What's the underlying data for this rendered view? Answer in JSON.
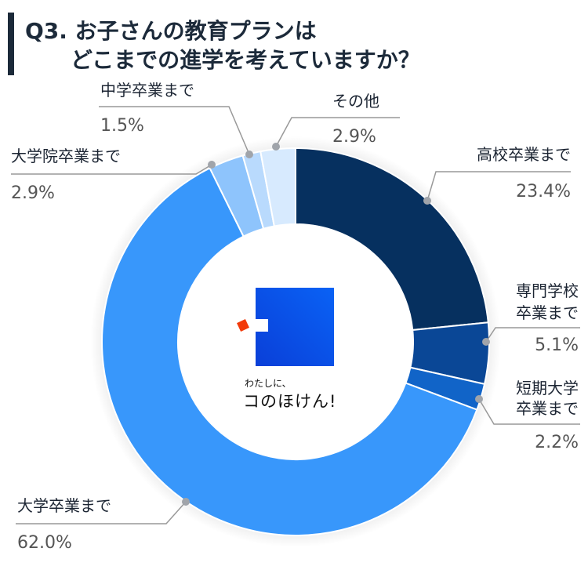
{
  "header": {
    "title_line1": "Q3. お子さんの教育プランは",
    "title_line2": "どこまでの進学を考えていますか？"
  },
  "logo": {
    "tagline": "わたしに、",
    "name": "コのほけん!"
  },
  "chart_data": {
    "type": "pie",
    "variant": "donut",
    "title": "Q3. お子さんの教育プランは どこまでの進学を考えていますか？",
    "unit": "%",
    "categories": [
      "高校卒業まで",
      "専門学校卒業まで",
      "短期大学卒業まで",
      "大学卒業まで",
      "大学院卒業まで",
      "中学卒業まで",
      "その他"
    ],
    "labels": [
      "高校卒業まで",
      "専門学校\n卒業まで",
      "短期大学\n卒業まで",
      "大学卒業まで",
      "大学院卒業まで",
      "中学卒業まで",
      "その他"
    ],
    "values": [
      23.4,
      5.1,
      2.2,
      62.0,
      2.9,
      1.5,
      2.9
    ],
    "value_labels": [
      "23.4%",
      "5.1%",
      "2.2%",
      "62.0%",
      "2.9%",
      "1.5%",
      "2.9%"
    ],
    "colors": [
      "#06305f",
      "#0a4796",
      "#1164c8",
      "#3897fb",
      "#8ec4fc",
      "#b9dafd",
      "#d7eafe"
    ]
  }
}
